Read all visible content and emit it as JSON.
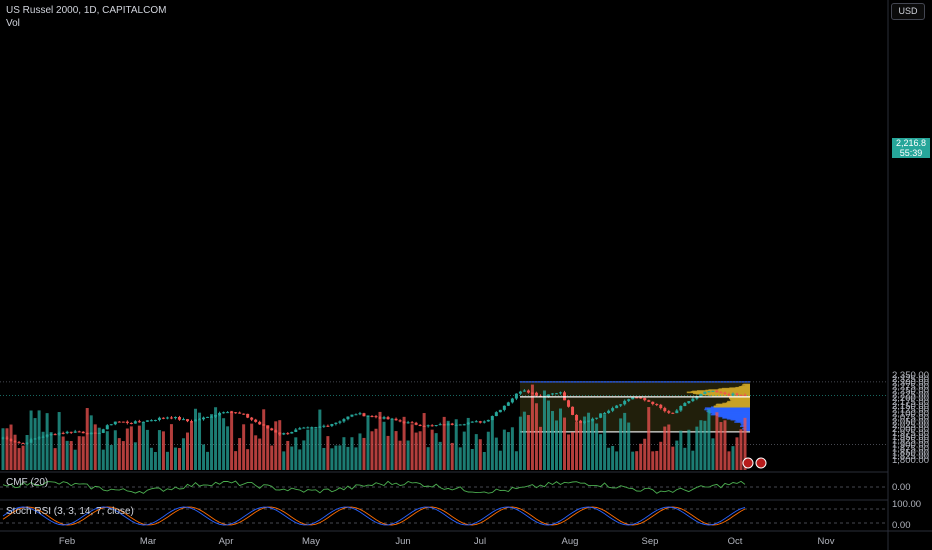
{
  "header": {
    "symbol_line": "US Russel 2000, 1D, CAPITALCOM",
    "volume_label": "Vol",
    "currency_button": "USD"
  },
  "indicators": {
    "cmf_label": "CMF (20)",
    "stoch_label": "Stoch RSI (3, 3, 14, 7, close)"
  },
  "price_tags": {
    "last_price": "2,216.8",
    "countdown": "55:39"
  },
  "colors": {
    "up": "#26a69a",
    "down": "#ef5350",
    "background": "#000000",
    "profile_up": "#c9a227",
    "profile_down": "#2962ff",
    "range_box": "#2962ff",
    "cmf_line": "#4caf50",
    "stoch_k": "#2962ff",
    "stoch_d": "#ff6d00"
  },
  "chart_data": {
    "type": "candlestick",
    "price_axis": {
      "ticks": [
        "2,350.00",
        "2,325.00",
        "2,300.00",
        "2,275.00",
        "2,250.00",
        "2,225.00",
        "2,200.00",
        "2,175.00",
        "2,150.00",
        "2,125.00",
        "2,100.00",
        "2,075.00",
        "2,050.00",
        "2,025.00",
        "2,000.00",
        "1,975.00",
        "1,950.00",
        "1,925.00",
        "1,900.00",
        "1,875.00",
        "1,850.00",
        "1,825.00",
        "1,800.00"
      ],
      "ylim": [
        1795,
        2360
      ]
    },
    "time_axis": [
      "Feb",
      "Mar",
      "Apr",
      "May",
      "Jun",
      "Jul",
      "Aug",
      "Sep",
      "Oct",
      "Nov"
    ],
    "cmf_axis": [
      "0.00"
    ],
    "stoch_axis": [
      "100.00",
      "0.00"
    ],
    "price_keypoints": [
      {
        "date": "Jan 5",
        "close": 1945
      },
      {
        "date": "Jan 12",
        "close": 1905
      },
      {
        "date": "Jan 19",
        "close": 1950
      },
      {
        "date": "Jan 26",
        "close": 1975
      },
      {
        "date": "Feb 2",
        "close": 1985
      },
      {
        "date": "Feb 9",
        "close": 1965
      },
      {
        "date": "Feb 16",
        "close": 2050
      },
      {
        "date": "Feb 23",
        "close": 2040
      },
      {
        "date": "Mar 1",
        "close": 2060
      },
      {
        "date": "Mar 8",
        "close": 2080
      },
      {
        "date": "Mar 15",
        "close": 2050
      },
      {
        "date": "Mar 22",
        "close": 2075
      },
      {
        "date": "Mar 29",
        "close": 2120
      },
      {
        "date": "Apr 5",
        "close": 2090
      },
      {
        "date": "Apr 12",
        "close": 2020
      },
      {
        "date": "Apr 19",
        "close": 1965
      },
      {
        "date": "Apr 26",
        "close": 2000
      },
      {
        "date": "May 3",
        "close": 2010
      },
      {
        "date": "May 10",
        "close": 2045
      },
      {
        "date": "May 17",
        "close": 2100
      },
      {
        "date": "May 24",
        "close": 2080
      },
      {
        "date": "May 31",
        "close": 2060
      },
      {
        "date": "Jun 7",
        "close": 2035
      },
      {
        "date": "Jun 14",
        "close": 2020
      },
      {
        "date": "Jun 21",
        "close": 2030
      },
      {
        "date": "Jun 28",
        "close": 2040
      },
      {
        "date": "Jul 5",
        "close": 2050
      },
      {
        "date": "Jul 12",
        "close": 2150
      },
      {
        "date": "Jul 16",
        "close": 2260
      },
      {
        "date": "Jul 24",
        "close": 2210
      },
      {
        "date": "Jul 31",
        "close": 2245
      },
      {
        "date": "Aug 5",
        "close": 2030
      },
      {
        "date": "Aug 12",
        "close": 2080
      },
      {
        "date": "Aug 19",
        "close": 2150
      },
      {
        "date": "Aug 26",
        "close": 2210
      },
      {
        "date": "Sep 3",
        "close": 2170
      },
      {
        "date": "Sep 9",
        "close": 2090
      },
      {
        "date": "Sep 16",
        "close": 2185
      },
      {
        "date": "Sep 20",
        "close": 2245
      },
      {
        "date": "Sep 27",
        "close": 2225
      },
      {
        "date": "Oct 2",
        "close": 2216.8
      }
    ],
    "range_box": {
      "high": 2305,
      "low": 1982
    },
    "horizontal_line": 2208,
    "current_price": 2216.8,
    "grid": false,
    "legend": "top-left"
  }
}
